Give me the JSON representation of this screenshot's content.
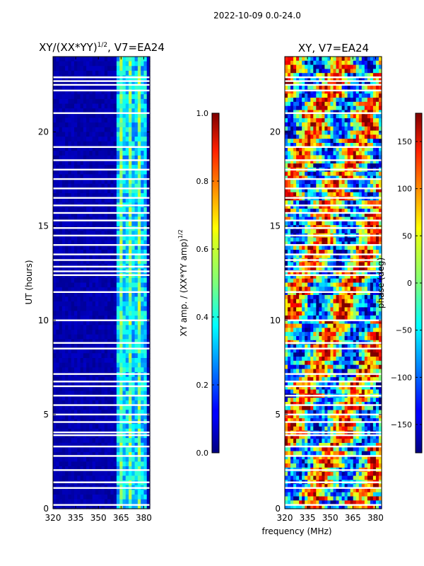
{
  "figure": {
    "suptitle": "2022-10-09 0.0-24.0",
    "xlabel": "frequency (MHz)"
  },
  "chart_data": [
    {
      "type": "heatmap",
      "title": "XY/(XX*YY)",
      "title_exponent": "1/2",
      "title_suffix": ", V7=EA24",
      "xlabel": "",
      "ylabel": "UT (hours)",
      "xlim": [
        320,
        384
      ],
      "ylim": [
        0,
        24
      ],
      "xticks": [
        "320",
        "335",
        "350",
        "365",
        "380"
      ],
      "yticks": [
        "0",
        "5",
        "10",
        "15",
        "20"
      ],
      "colormap": "jet",
      "colorbar": {
        "label": "XY amp. / (XX*YY amp)",
        "label_exponent": "1/2",
        "range": [
          0.0,
          1.0
        ],
        "ticks": [
          "0.0",
          "0.2",
          "0.4",
          "0.6",
          "0.8",
          "1.0"
        ]
      },
      "description": "amplitude mostly near 0 below 362 MHz; elevated 0.3-0.5 in channels 362-382 MHz",
      "flagged_rows_hours": [
        0.2,
        1.1,
        1.4,
        2.05,
        2.8,
        3.3,
        3.9,
        4.05,
        4.6,
        5.0,
        5.5,
        6.0,
        6.5,
        6.75,
        7.15,
        8.5,
        8.8,
        10.0,
        11.5,
        12.4,
        12.6,
        12.85,
        13.2,
        13.5,
        14.0,
        14.5,
        14.9,
        15.3,
        15.7,
        16.1,
        16.5,
        17.0,
        17.5,
        18.0,
        18.5,
        19.2,
        21.0,
        22.2,
        22.5,
        22.7,
        22.9
      ]
    },
    {
      "type": "heatmap",
      "title": "XY, V7=EA24",
      "xlabel": "",
      "ylabel": "",
      "xlim": [
        320,
        384
      ],
      "ylim": [
        0,
        24
      ],
      "xticks": [
        "320",
        "335",
        "350",
        "365",
        "380"
      ],
      "yticks": [
        "0",
        "5",
        "10",
        "15",
        "20"
      ],
      "colormap": "jet",
      "colorbar": {
        "label": "phase (deg)",
        "range": [
          -180,
          180
        ],
        "ticks": [
          "−150",
          "−100",
          "−50",
          "0",
          "50",
          "100",
          "150"
        ]
      },
      "description": "phase spread across full -180 to 180 range with banded structure",
      "flagged_rows_hours": [
        0.2,
        1.1,
        1.4,
        2.05,
        2.8,
        3.3,
        3.9,
        4.05,
        4.6,
        5.0,
        5.5,
        6.0,
        6.5,
        6.75,
        7.15,
        8.5,
        8.8,
        10.0,
        11.5,
        12.4,
        12.6,
        12.85,
        13.2,
        13.5,
        14.0,
        14.5,
        14.9,
        15.3,
        15.7,
        16.1,
        16.5,
        17.0,
        17.5,
        18.0,
        18.5,
        19.2,
        21.0,
        22.2,
        22.5,
        22.7,
        22.9
      ]
    }
  ]
}
